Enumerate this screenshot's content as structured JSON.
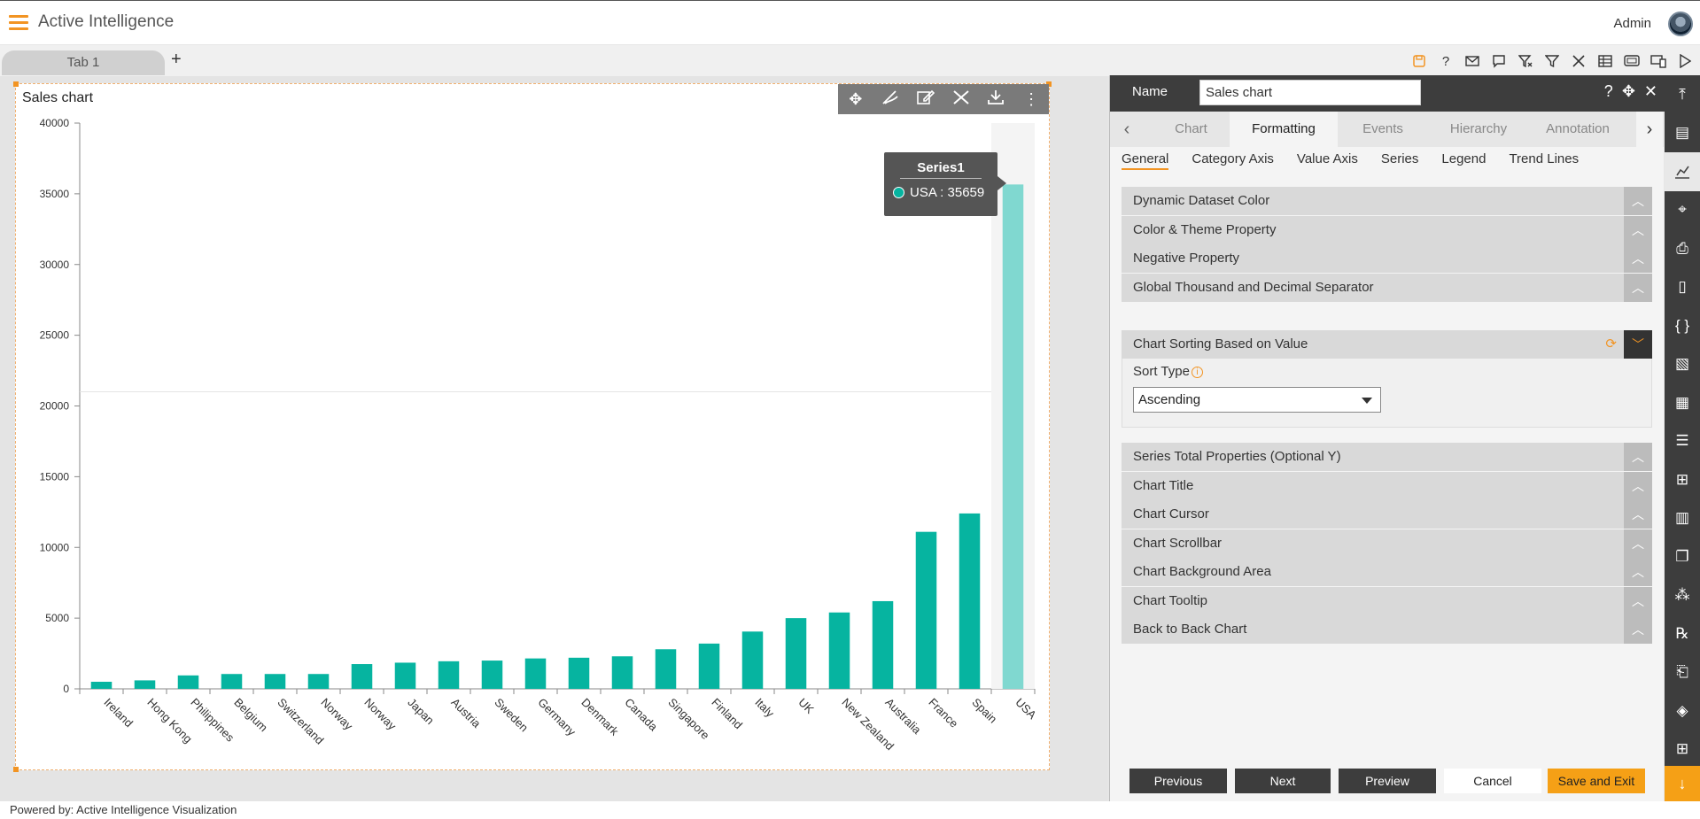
{
  "app": {
    "title": "Active Intelligence",
    "user": "Admin",
    "footer": "Powered by: Active Intelligence Visualization"
  },
  "tabs": [
    {
      "label": "Tab 1"
    }
  ],
  "toolbar_icons": [
    "save-icon",
    "help-icon",
    "mail-icon",
    "comment-icon",
    "clear-filter-icon",
    "filter-icon",
    "tools-icon",
    "table-icon",
    "screen-icon",
    "devices-icon",
    "play-icon"
  ],
  "widget": {
    "title": "Sales chart",
    "tools": [
      "move-icon",
      "draw-icon",
      "edit-icon",
      "settings-tools-icon",
      "download-icon",
      "more-icon"
    ]
  },
  "tooltip": {
    "title": "Series1",
    "label": "USA : 35659"
  },
  "chart_data": {
    "type": "bar",
    "title": "Sales chart",
    "categories": [
      "Ireland",
      "Hong Kong",
      "Philippines",
      "Belgium",
      "Switzerland",
      "Norway",
      "Norway",
      "Japan",
      "Austria",
      "Sweden",
      "Germany",
      "Denmark",
      "Canada",
      "Singapore",
      "Finland",
      "Italy",
      "UK",
      "New Zealand",
      "Australia",
      "France",
      "Spain",
      "USA"
    ],
    "series": [
      {
        "name": "Series1",
        "values": [
          500,
          600,
          950,
          1050,
          1050,
          1050,
          1750,
          1850,
          1950,
          2000,
          2150,
          2200,
          2300,
          2800,
          3200,
          4050,
          5000,
          5400,
          6200,
          11100,
          12400,
          35659
        ]
      }
    ],
    "yticks": [
      0,
      5000,
      10000,
      15000,
      20000,
      25000,
      30000,
      35000,
      40000
    ],
    "ylim": [
      0,
      40000
    ],
    "color": "#06b4a0",
    "highlight_color": "#80d8d0",
    "highlight_category": "USA"
  },
  "panel": {
    "name_label": "Name",
    "name_value": "Sales chart",
    "main_tabs": [
      "Chart",
      "Formatting",
      "Events",
      "Hierarchy",
      "Annotation"
    ],
    "active_main_tab": "Formatting",
    "sub_tabs": [
      "General",
      "Category Axis",
      "Value Axis",
      "Series",
      "Legend",
      "Trend Lines"
    ],
    "active_sub_tab": "General",
    "sections": [
      "Dynamic Dataset Color",
      "Color & Theme Property",
      "Negative Property",
      "Global Thousand and Decimal Separator",
      "Chart Sorting Based on Value",
      "Series Total Properties (Optional Y)",
      "Chart Title",
      "Chart Cursor",
      "Chart Scrollbar",
      "Chart Background Area",
      "Chart Tooltip",
      "Back to Back Chart"
    ],
    "sort_type_label": "Sort Type",
    "sort_type_value": "Ascending",
    "buttons": {
      "previous": "Previous",
      "next": "Next",
      "preview": "Preview",
      "cancel": "Cancel",
      "save": "Save and Exit"
    }
  },
  "rail_icons": [
    "collapse-top-icon",
    "list-icon",
    "chart-icon",
    "map-icon",
    "report-icon",
    "document-icon",
    "code-icon",
    "image-icon",
    "table-icon",
    "text-doc-icon",
    "hierarchy-icon",
    "bar-chart-icon",
    "copy-icon",
    "cluster-icon",
    "formula-icon",
    "note-icon",
    "layers-icon",
    "grid-add-icon"
  ],
  "accent": "#f29423"
}
